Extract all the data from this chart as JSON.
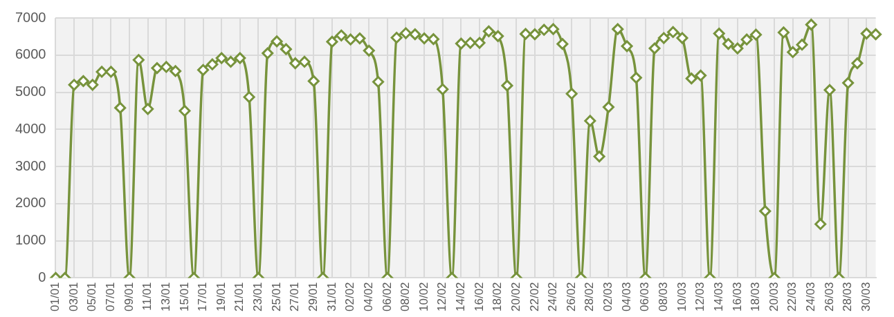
{
  "chart_data": {
    "type": "line",
    "categories": [
      "01/01",
      null,
      "03/01",
      null,
      "05/01",
      null,
      "07/01",
      null,
      "09/01",
      null,
      "11/01",
      null,
      "13/01",
      null,
      "15/01",
      null,
      "17/01",
      null,
      "19/01",
      null,
      "21/01",
      null,
      "23/01",
      null,
      "25/01",
      null,
      "27/01",
      null,
      "29/01",
      null,
      "31/01",
      null,
      "02/02",
      null,
      "04/02",
      null,
      "06/02",
      null,
      "08/02",
      null,
      "10/02",
      null,
      "12/02",
      null,
      "14/02",
      null,
      "16/02",
      null,
      "18/02",
      null,
      "20/02",
      null,
      "22/02",
      null,
      "24/02",
      null,
      "26/02",
      null,
      "28/02",
      null,
      "02/03",
      null,
      "04/03",
      null,
      "06/03",
      null,
      "08/03",
      null,
      "10/03",
      null,
      "12/03",
      null,
      "14/03",
      null,
      "16/03",
      null,
      "18/03",
      null,
      "20/03",
      null,
      "22/03",
      null,
      "24/03",
      null,
      "26/03",
      null,
      "28/03",
      null,
      "30/03",
      null
    ],
    "series": [
      {
        "color": "#77933c",
        "values": [
          0,
          0,
          5200,
          5300,
          5200,
          5550,
          5550,
          4580,
          0,
          5870,
          4550,
          5650,
          5680,
          5570,
          4500,
          0,
          5600,
          5750,
          5920,
          5820,
          5920,
          4870,
          0,
          6050,
          6370,
          6160,
          5780,
          5820,
          5300,
          0,
          6360,
          6530,
          6420,
          6450,
          6120,
          5280,
          0,
          6470,
          6590,
          6560,
          6450,
          6430,
          5080,
          0,
          6310,
          6330,
          6330,
          6640,
          6510,
          5180,
          0,
          6570,
          6560,
          6680,
          6700,
          6300,
          4960,
          0,
          4230,
          3270,
          4600,
          6700,
          6240,
          5390,
          0,
          6180,
          6460,
          6620,
          6460,
          5370,
          5450,
          0,
          6580,
          6300,
          6180,
          6420,
          6550,
          1800,
          0,
          6610,
          6080,
          6280,
          6820,
          1450,
          5060,
          0,
          5250,
          5780,
          6580,
          6560
        ]
      }
    ],
    "ylim": [
      0,
      7000
    ],
    "yticks": [
      0,
      1000,
      2000,
      3000,
      4000,
      5000,
      6000,
      7000
    ],
    "grid": true,
    "marker": "diamond",
    "line_style": "solid"
  }
}
